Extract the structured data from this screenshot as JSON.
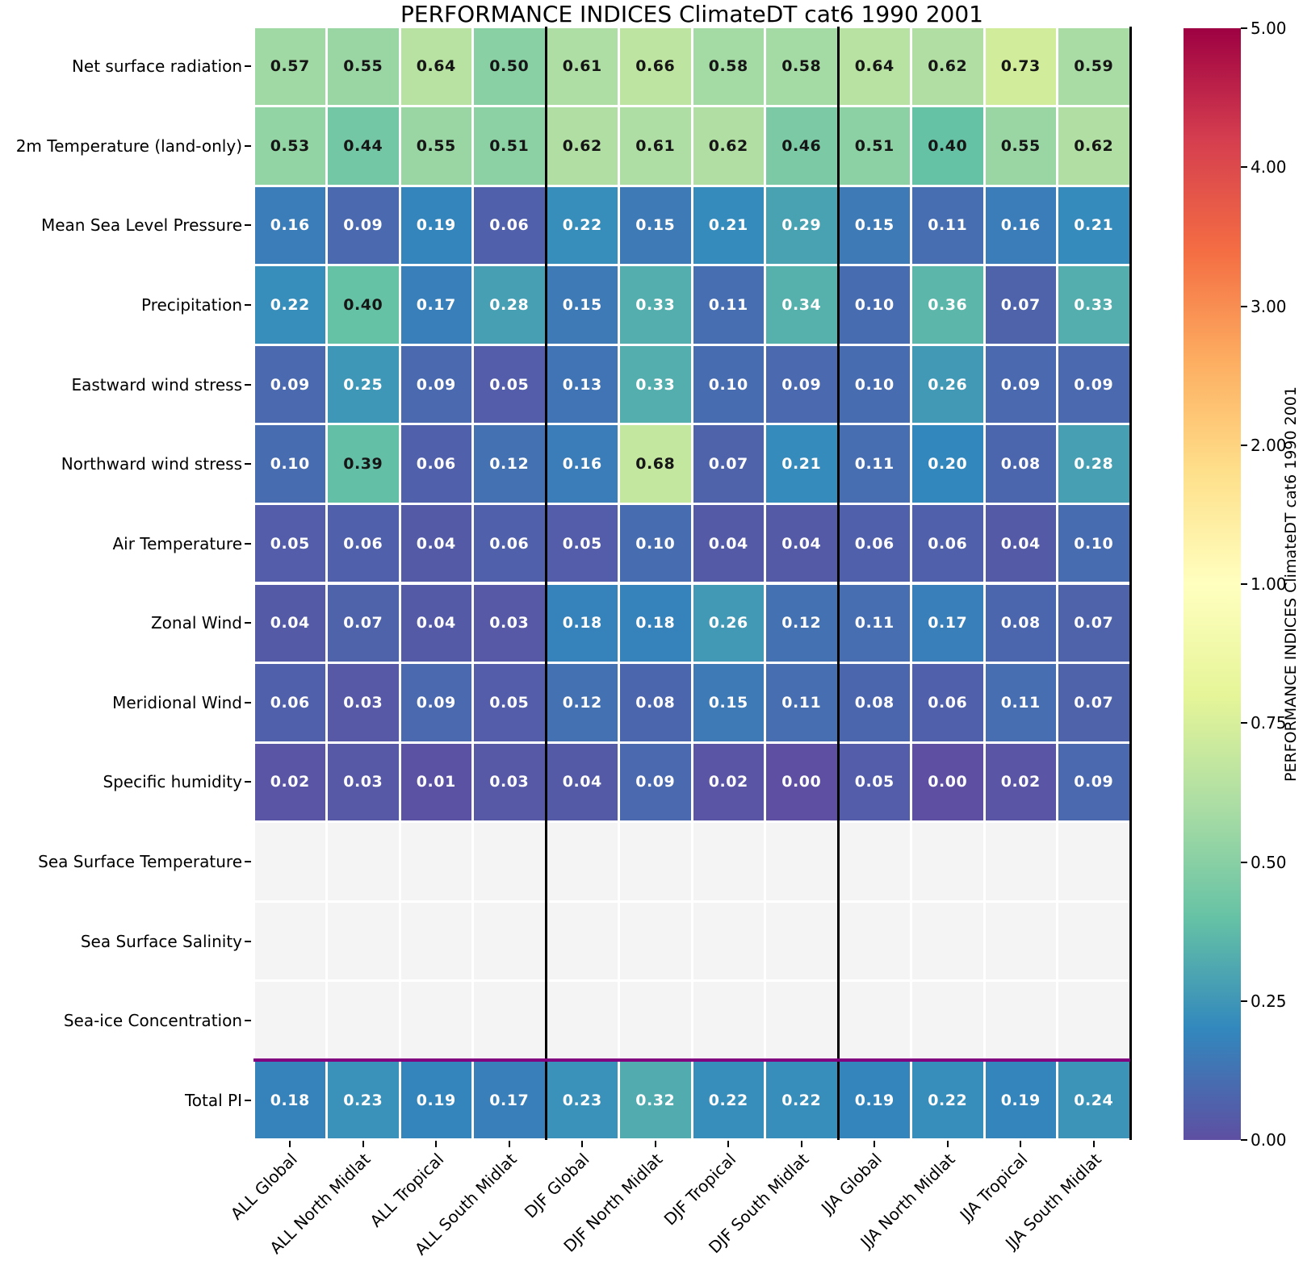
{
  "title": "PERFORMANCE INDICES ClimateDT cat6 1990 2001",
  "chart_data": {
    "type": "heatmap",
    "title": "PERFORMANCE INDICES ClimateDT cat6 1990 2001",
    "rows": [
      "Net surface radiation",
      "2m Temperature (land-only)",
      "Mean Sea Level Pressure",
      "Precipitation",
      "Eastward wind stress",
      "Northward wind stress",
      "Air Temperature",
      "Zonal Wind",
      "Meridional Wind",
      "Specific humidity",
      "Sea Surface Temperature",
      "Sea Surface Salinity",
      "Sea-ice Concentration",
      "Total PI"
    ],
    "columns": [
      "ALL Global",
      "ALL North Midlat",
      "ALL Tropical",
      "ALL South Midlat",
      "DJF Global",
      "DJF North Midlat",
      "DJF Tropical",
      "DJF South Midlat",
      "JJA Global",
      "JJA North Midlat",
      "JJA Tropical",
      "JJA South Midlat"
    ],
    "values": [
      [
        0.57,
        0.55,
        0.64,
        0.5,
        0.61,
        0.66,
        0.58,
        0.58,
        0.64,
        0.62,
        0.73,
        0.59
      ],
      [
        0.53,
        0.44,
        0.55,
        0.51,
        0.62,
        0.61,
        0.62,
        0.46,
        0.51,
        0.4,
        0.55,
        0.62
      ],
      [
        0.16,
        0.09,
        0.19,
        0.06,
        0.22,
        0.15,
        0.21,
        0.29,
        0.15,
        0.11,
        0.16,
        0.21
      ],
      [
        0.22,
        0.4,
        0.17,
        0.28,
        0.15,
        0.33,
        0.11,
        0.34,
        0.1,
        0.36,
        0.07,
        0.33
      ],
      [
        0.09,
        0.25,
        0.09,
        0.05,
        0.13,
        0.33,
        0.1,
        0.09,
        0.1,
        0.26,
        0.09,
        0.09
      ],
      [
        0.1,
        0.39,
        0.06,
        0.12,
        0.16,
        0.68,
        0.07,
        0.21,
        0.11,
        0.2,
        0.08,
        0.28
      ],
      [
        0.05,
        0.06,
        0.04,
        0.06,
        0.05,
        0.1,
        0.04,
        0.04,
        0.06,
        0.06,
        0.04,
        0.1
      ],
      [
        0.04,
        0.07,
        0.04,
        0.03,
        0.18,
        0.18,
        0.26,
        0.12,
        0.11,
        0.17,
        0.08,
        0.07
      ],
      [
        0.06,
        0.03,
        0.09,
        0.05,
        0.12,
        0.08,
        0.15,
        0.11,
        0.08,
        0.06,
        0.11,
        0.07
      ],
      [
        0.02,
        0.03,
        0.01,
        0.03,
        0.04,
        0.09,
        0.02,
        0.0,
        0.05,
        0.0,
        0.02,
        0.09
      ],
      [
        null,
        null,
        null,
        null,
        null,
        null,
        null,
        null,
        null,
        null,
        null,
        null
      ],
      [
        null,
        null,
        null,
        null,
        null,
        null,
        null,
        null,
        null,
        null,
        null,
        null
      ],
      [
        null,
        null,
        null,
        null,
        null,
        null,
        null,
        null,
        null,
        null,
        null,
        null
      ],
      [
        0.18,
        0.23,
        0.19,
        0.17,
        0.23,
        0.32,
        0.22,
        0.22,
        0.19,
        0.22,
        0.19,
        0.24
      ]
    ],
    "colorbar": {
      "label": "PERFORMANCE INDICES ClimateDT cat6 1990 2001",
      "tick_labels": [
        "5.00",
        "4.00",
        "3.00",
        "2.00",
        "1.00",
        "0.75",
        "0.50",
        "0.25",
        "0.00"
      ],
      "vmin": 0,
      "vmax": 5,
      "colormap": "Spectral_r",
      "colormap_stops": [
        "#5e4fa2",
        "#3288bd",
        "#66c2a5",
        "#abdda4",
        "#e6f598",
        "#ffffbf",
        "#fee08b",
        "#fdae61",
        "#f46d43",
        "#d53e4f",
        "#9e0142"
      ]
    },
    "group_separator_after_columns": [
      4,
      8,
      12
    ],
    "total_row_separator_color": "#800080",
    "missing_value_color": "#f4f4f4",
    "annotation_text_dark": "#161616",
    "annotation_text_light": "#ffffff",
    "grid_on": true,
    "legend_position": "right"
  }
}
